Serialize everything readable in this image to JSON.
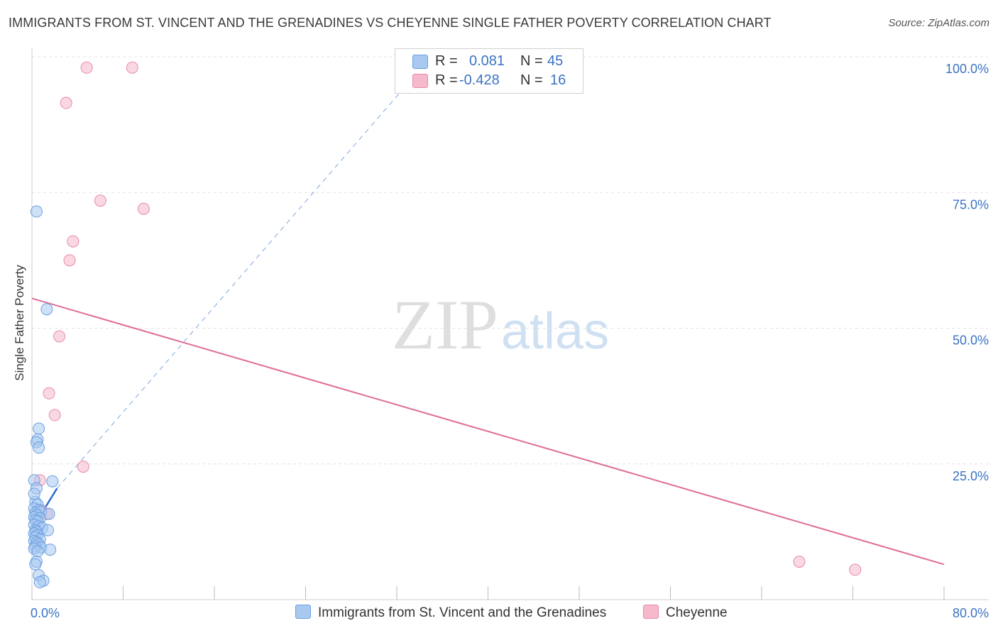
{
  "header": {
    "title": "IMMIGRANTS FROM ST. VINCENT AND THE GRENADINES VS CHEYENNE SINGLE FATHER POVERTY CORRELATION CHART",
    "source": "Source: ZipAtlas.com"
  },
  "watermark": {
    "zip": "ZIP",
    "atlas": "atlas"
  },
  "legend": {
    "series1": {
      "r_label": "R =",
      "r_value": "0.081",
      "n_label": "N =",
      "n_value": "45",
      "color": "#a8c8f0"
    },
    "series2": {
      "r_label": "R =",
      "r_value": "-0.428",
      "n_label": "N =",
      "n_value": "16",
      "color": "#f6b8cb"
    }
  },
  "chart_data": {
    "type": "scatter",
    "title": "IMMIGRANTS FROM ST. VINCENT AND THE GRENADINES VS CHEYENNE SINGLE FATHER POVERTY CORRELATION CHART",
    "xlabel": "",
    "ylabel": "Single Father Poverty",
    "xlim": [
      0,
      80
    ],
    "ylim": [
      0,
      100
    ],
    "x_tick_labels": [
      "0.0%",
      "80.0%"
    ],
    "y_tick_labels": [
      "25.0%",
      "50.0%",
      "75.0%",
      "100.0%"
    ],
    "y_ticks": [
      25,
      50,
      75,
      100
    ],
    "grid": true,
    "series": [
      {
        "name": "Immigrants from St. Vincent and the Grenadines",
        "color": "#6a9fe0",
        "fill": "#a8c8f0",
        "points": [
          [
            0.4,
            71.5
          ],
          [
            1.3,
            53.5
          ],
          [
            0.6,
            31.5
          ],
          [
            0.5,
            29.5
          ],
          [
            0.4,
            29.0
          ],
          [
            0.6,
            28.0
          ],
          [
            0.2,
            22.0
          ],
          [
            1.8,
            21.8
          ],
          [
            0.4,
            20.5
          ],
          [
            0.3,
            18.0
          ],
          [
            0.5,
            17.5
          ],
          [
            0.2,
            16.8
          ],
          [
            0.6,
            16.5
          ],
          [
            0.3,
            16.0
          ],
          [
            0.8,
            16.2
          ],
          [
            1.5,
            15.8
          ],
          [
            0.4,
            15.6
          ],
          [
            0.2,
            15.2
          ],
          [
            0.7,
            15.0
          ],
          [
            0.3,
            14.6
          ],
          [
            0.5,
            14.4
          ],
          [
            0.2,
            13.8
          ],
          [
            0.6,
            13.5
          ],
          [
            0.9,
            13.2
          ],
          [
            0.3,
            12.8
          ],
          [
            0.4,
            12.5
          ],
          [
            1.4,
            12.8
          ],
          [
            0.2,
            12.2
          ],
          [
            0.5,
            11.9
          ],
          [
            0.3,
            11.5
          ],
          [
            0.7,
            11.1
          ],
          [
            0.2,
            10.8
          ],
          [
            0.4,
            10.5
          ],
          [
            0.6,
            10.2
          ],
          [
            0.3,
            9.8
          ],
          [
            0.8,
            9.6
          ],
          [
            0.2,
            9.4
          ],
          [
            1.6,
            9.2
          ],
          [
            0.5,
            8.9
          ],
          [
            0.4,
            7.0
          ],
          [
            0.3,
            6.5
          ],
          [
            0.6,
            4.5
          ],
          [
            1.0,
            3.5
          ],
          [
            0.7,
            3.2
          ],
          [
            0.2,
            19.5
          ]
        ],
        "trend": {
          "style": "solid",
          "x": [
            0.0,
            2.2
          ],
          "y": [
            13.0,
            20.5
          ]
        },
        "trend_extended": {
          "style": "dashed",
          "x": [
            2.2,
            35.0
          ],
          "y": [
            20.5,
            100.0
          ]
        }
      },
      {
        "name": "Cheyenne",
        "color": "#e88aa8",
        "fill": "#f6b8cb",
        "points": [
          [
            4.8,
            98.0
          ],
          [
            8.8,
            98.0
          ],
          [
            3.0,
            91.5
          ],
          [
            6.0,
            73.5
          ],
          [
            9.8,
            72.0
          ],
          [
            3.6,
            66.0
          ],
          [
            3.3,
            62.5
          ],
          [
            2.4,
            48.5
          ],
          [
            1.5,
            38.0
          ],
          [
            2.0,
            34.0
          ],
          [
            4.5,
            24.5
          ],
          [
            0.7,
            22.0
          ],
          [
            1.3,
            15.8
          ],
          [
            0.8,
            16.5
          ],
          [
            67.3,
            7.0
          ],
          [
            72.2,
            5.5
          ]
        ],
        "trend": {
          "style": "solid",
          "x": [
            0.0,
            80.0
          ],
          "y": [
            55.5,
            6.5
          ]
        }
      }
    ]
  },
  "bottom_legend": {
    "item1": "Immigrants from St. Vincent and the Grenadines",
    "item2": "Cheyenne"
  }
}
